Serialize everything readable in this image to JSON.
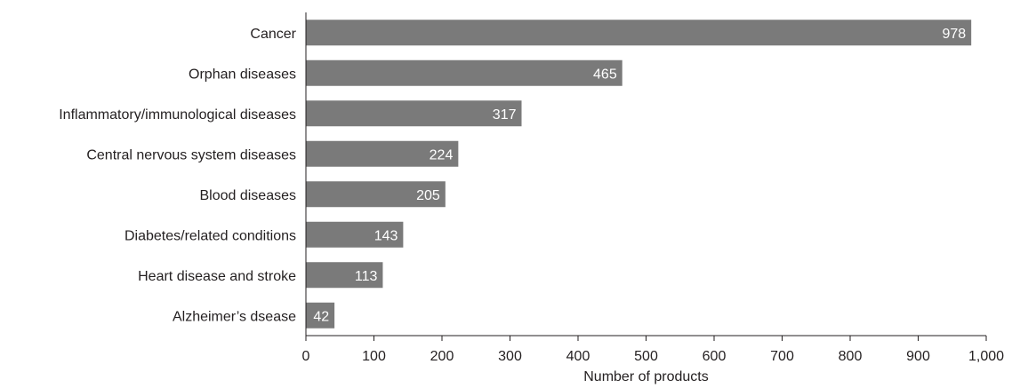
{
  "chart_data": {
    "type": "bar",
    "orientation": "horizontal",
    "categories": [
      "Cancer",
      "Orphan diseases",
      "Inflammatory/immunological diseases",
      "Central nervous system diseases",
      "Blood diseases",
      "Diabetes/related conditions",
      "Heart disease and stroke",
      "Alzheimer’s dsease"
    ],
    "values": [
      978,
      465,
      317,
      224,
      205,
      143,
      113,
      42
    ],
    "value_labels": [
      "978",
      "465",
      "317",
      "224",
      "205",
      "143",
      "113",
      "42"
    ],
    "xlabel": "Number of products",
    "ylabel": "",
    "xlim": [
      0,
      1000
    ],
    "xticks": [
      0,
      100,
      200,
      300,
      400,
      500,
      600,
      700,
      800,
      900,
      1000
    ],
    "xtick_labels": [
      "0",
      "100",
      "200",
      "300",
      "400",
      "500",
      "600",
      "700",
      "800",
      "900",
      "1,000"
    ],
    "grid": false,
    "colors": {
      "bar": "#7a7a7a",
      "axis": "#231f20",
      "bar_label": "#ffffff"
    }
  }
}
